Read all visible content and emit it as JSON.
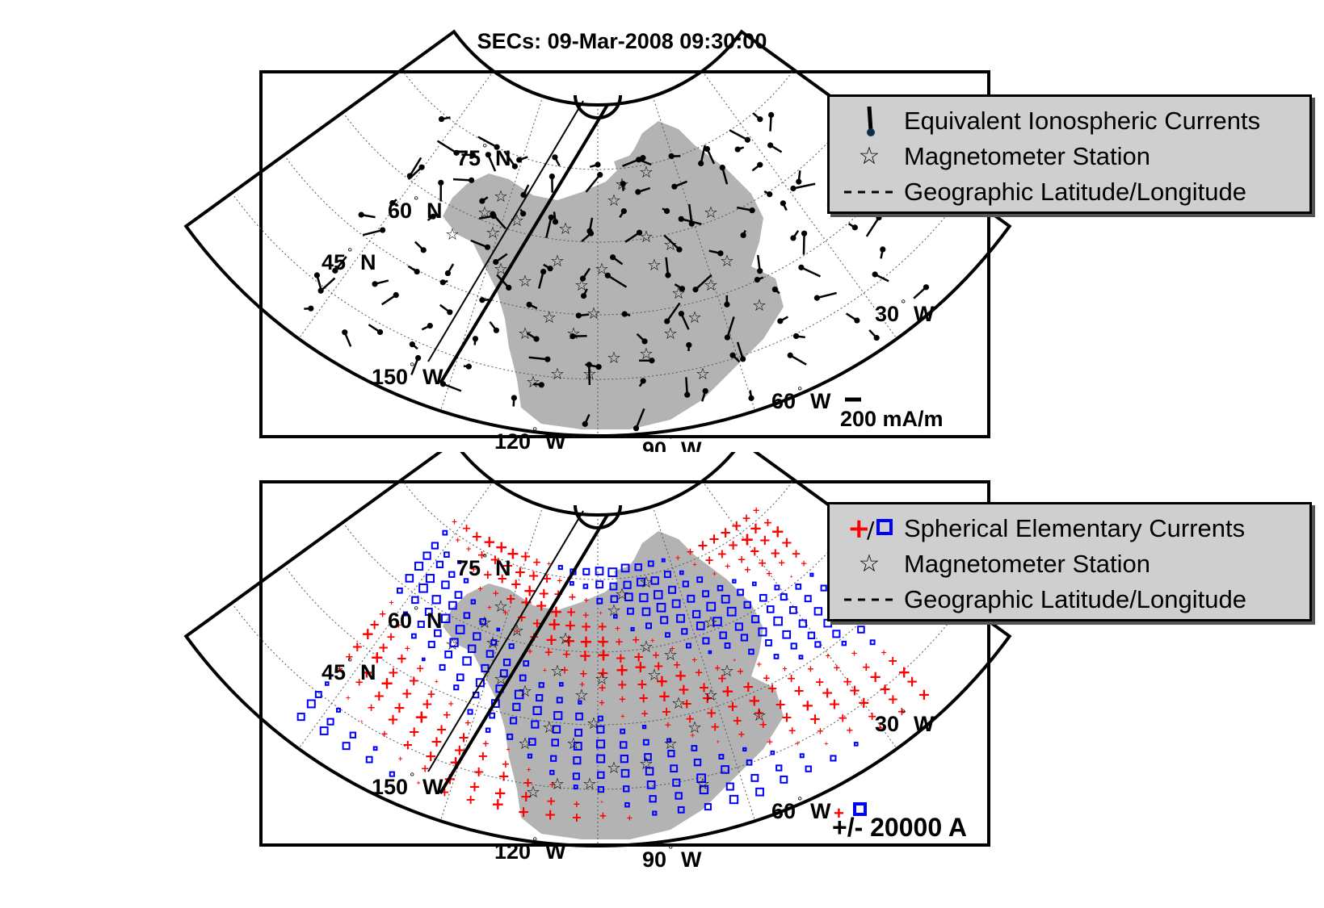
{
  "title": "SECs: 09-Mar-2008 09:30:00",
  "labels": {
    "lat75": "75",
    "lat60": "60",
    "lat45": "45",
    "lon150": "150",
    "lon120": "120",
    "lon90": "90",
    "lon60": "60",
    "lon30": "30",
    "deg": "°",
    "north": "N",
    "west": "W"
  },
  "top_panel": {
    "legend": [
      {
        "icon": "vector-icon",
        "label": "Equivalent Ionospheric Currents"
      },
      {
        "icon": "star-icon",
        "label": "Magnetometer Station"
      },
      {
        "icon": "dashed-line-icon",
        "label": "Geographic Latitude/Longitude"
      }
    ],
    "scale_label": "200 mA/m"
  },
  "bottom_panel": {
    "legend": [
      {
        "icon": "plus-square-icon",
        "label": "Spherical Elementary Currents"
      },
      {
        "icon": "star-icon",
        "label": "Magnetometer Station"
      },
      {
        "icon": "dashed-line-icon",
        "label": "Geographic Latitude/Longitude"
      }
    ],
    "scale_label": "+/- 20000 A"
  },
  "colors": {
    "land": "#b3b3b3",
    "positive": "#ff0000",
    "negative": "#0000ff",
    "legend_bg": "#cfcfcf",
    "grid": "#555555"
  }
}
